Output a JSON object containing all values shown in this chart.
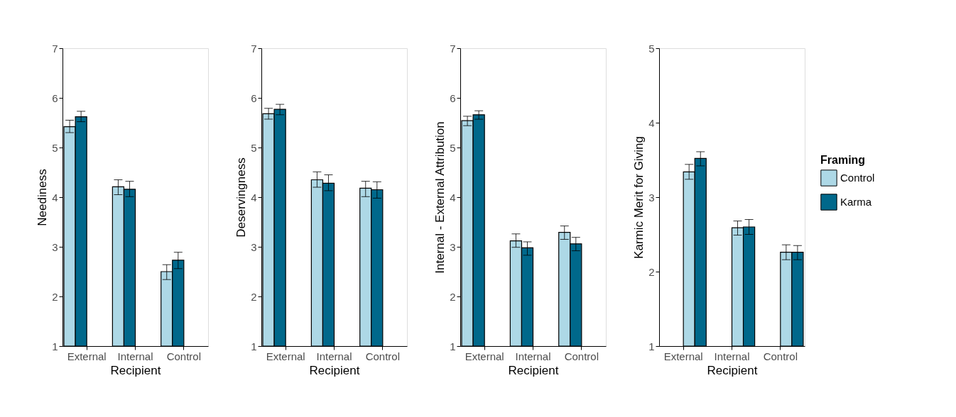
{
  "chart_data": [
    {
      "type": "bar",
      "categories": [
        "External",
        "Internal",
        "Control"
      ],
      "xlabel": "Recipient",
      "ylabel": "Neediness",
      "ylim": [
        1,
        7
      ],
      "yticks": [
        1,
        2,
        3,
        4,
        5,
        6,
        7
      ],
      "grid": false,
      "legend": false,
      "series": [
        {
          "color": "#add8e6",
          "values": [
            5.42,
            4.21,
            2.5
          ],
          "errors": [
            [
              5.3,
              5.55
            ],
            [
              4.05,
              4.35
            ],
            [
              2.34,
              2.64
            ]
          ]
        },
        {
          "color": "#00688b",
          "values": [
            5.62,
            4.16,
            2.73
          ],
          "errors": [
            [
              5.52,
              5.73
            ],
            [
              4.01,
              4.32
            ],
            [
              2.56,
              2.89
            ]
          ]
        }
      ]
    },
    {
      "type": "bar",
      "categories": [
        "External",
        "Internal",
        "Control"
      ],
      "xlabel": "Recipient",
      "ylabel": "Deservingness",
      "ylim": [
        1,
        7
      ],
      "yticks": [
        1,
        2,
        3,
        4,
        5,
        6,
        7
      ],
      "grid": false,
      "legend": false,
      "series": [
        {
          "color": "#add8e6",
          "values": [
            5.68,
            4.35,
            4.18
          ],
          "errors": [
            [
              5.57,
              5.79
            ],
            [
              4.2,
              4.51
            ],
            [
              4.01,
              4.32
            ]
          ]
        },
        {
          "color": "#00688b",
          "values": [
            5.77,
            4.28,
            4.15
          ],
          "errors": [
            [
              5.66,
              5.87
            ],
            [
              4.13,
              4.45
            ],
            [
              3.98,
              4.31
            ]
          ]
        }
      ]
    },
    {
      "type": "bar",
      "categories": [
        "External",
        "Internal",
        "Control"
      ],
      "xlabel": "Recipient",
      "ylabel": "Internal - External Attribution",
      "ylim": [
        1,
        7
      ],
      "yticks": [
        1,
        2,
        3,
        4,
        5,
        6,
        7
      ],
      "grid": false,
      "legend": false,
      "series": [
        {
          "color": "#add8e6",
          "values": [
            5.54,
            3.12,
            3.29
          ],
          "errors": [
            [
              5.44,
              5.63
            ],
            [
              2.99,
              3.26
            ],
            [
              3.15,
              3.42
            ]
          ]
        },
        {
          "color": "#00688b",
          "values": [
            5.66,
            2.98,
            3.06
          ],
          "errors": [
            [
              5.57,
              5.74
            ],
            [
              2.83,
              3.1
            ],
            [
              2.92,
              3.19
            ]
          ]
        }
      ]
    },
    {
      "type": "bar",
      "categories": [
        "External",
        "Internal",
        "Control"
      ],
      "xlabel": "Recipient",
      "ylabel": "Karmic Merit for Giving",
      "ylim": [
        1,
        5
      ],
      "yticks": [
        1,
        2,
        3,
        4,
        5
      ],
      "grid": false,
      "legend": "right",
      "legend_title": "Framing",
      "series": [
        {
          "name": "Control",
          "color": "#add8e6",
          "values": [
            3.34,
            2.59,
            2.26
          ],
          "errors": [
            [
              3.24,
              3.44
            ],
            [
              2.49,
              2.68
            ],
            [
              2.16,
              2.36
            ]
          ]
        },
        {
          "name": "Karma",
          "color": "#00688b",
          "values": [
            3.52,
            2.6,
            2.26
          ],
          "errors": [
            [
              3.42,
              3.61
            ],
            [
              2.5,
              2.7
            ],
            [
              2.16,
              2.35
            ]
          ]
        }
      ]
    }
  ]
}
